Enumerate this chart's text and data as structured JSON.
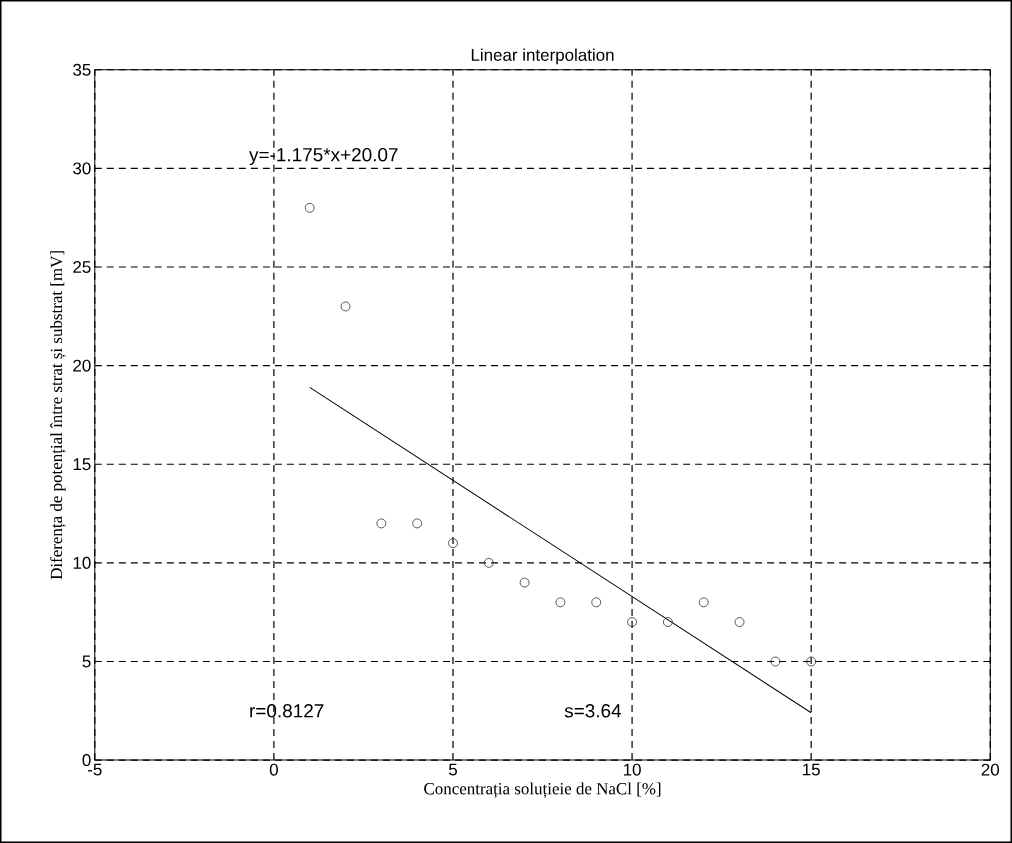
{
  "chart_data": {
    "type": "scatter",
    "title": "Linear interpolation",
    "xlabel": "Concentrația soluțieie de NaCl  [%]",
    "ylabel": "Diferența de potențial între strat și substrat [mV]",
    "xlim": [
      -5,
      20
    ],
    "ylim": [
      0,
      35
    ],
    "xticks": [
      -5,
      0,
      5,
      10,
      15,
      20
    ],
    "yticks": [
      0,
      5,
      10,
      15,
      20,
      25,
      30,
      35
    ],
    "grid": true,
    "series": [
      {
        "marker": "circle",
        "color": "#333333",
        "x": [
          1,
          2,
          3,
          4,
          5,
          6,
          7,
          8,
          9,
          10,
          11,
          12,
          13,
          14,
          15
        ],
        "values": [
          28,
          23,
          12,
          12,
          11,
          10,
          9,
          8,
          8,
          7,
          7,
          8,
          7,
          5,
          5
        ]
      },
      {
        "type": "line",
        "color": "#000000",
        "line_style": "solid",
        "x": [
          1,
          15
        ],
        "values": [
          18.9,
          2.4
        ]
      }
    ],
    "annotations": [
      "y=-1.175*x+20.07",
      "r=0.8127",
      "s=3.64"
    ]
  }
}
